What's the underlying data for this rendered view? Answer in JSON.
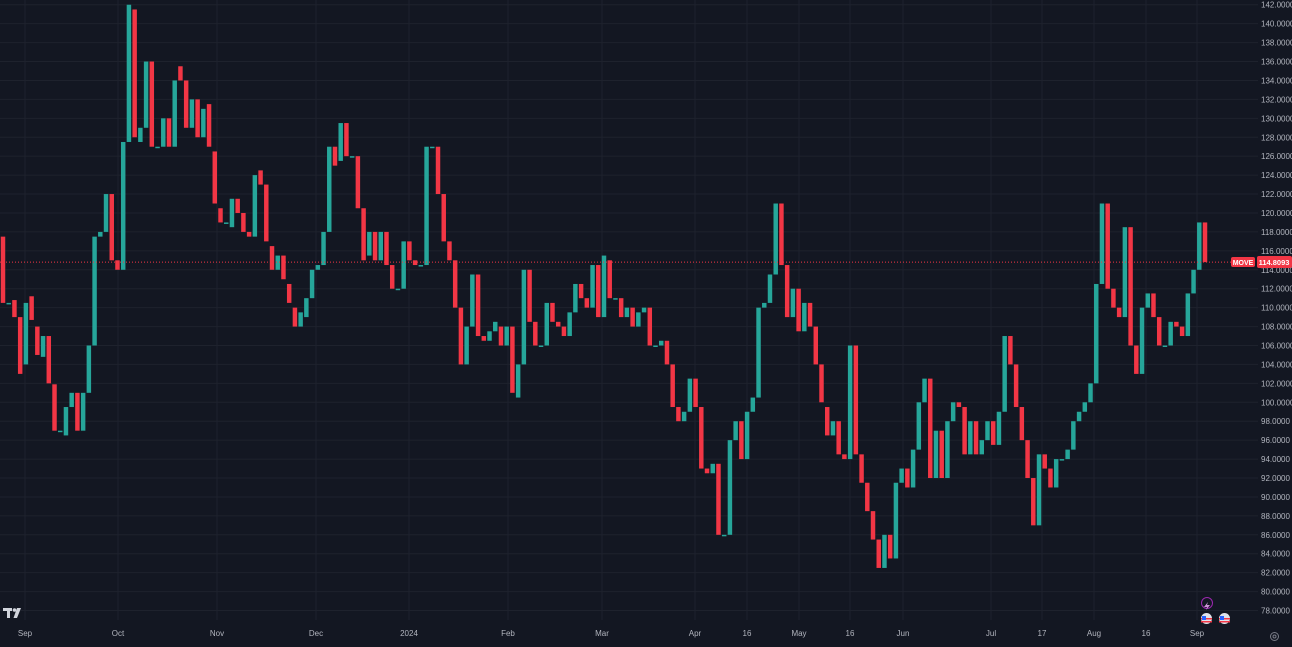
{
  "logo_text": "TV",
  "current_price_label": "114.8093",
  "symbol_tag": "MOVE",
  "colors": {
    "background": "#131722",
    "up": "#26a69a",
    "down": "#f23645",
    "grid": "#1e222d",
    "text": "#b2b5be",
    "price_line": "#f23645"
  },
  "icons": [
    "tradingview-logo-icon",
    "lightning-icon",
    "us-flag-event-icon",
    "settings-gear-icon"
  ],
  "chart_data": {
    "type": "candlestick",
    "ylim": [
      77,
      142.5
    ],
    "y_ticks": [
      "78.0000",
      "80.0000",
      "82.0000",
      "84.0000",
      "86.0000",
      "88.0000",
      "90.0000",
      "92.0000",
      "94.0000",
      "96.0000",
      "98.0000",
      "100.0000",
      "102.0000",
      "104.0000",
      "106.0000",
      "108.0000",
      "110.0000",
      "112.0000",
      "114.0000",
      "116.0000",
      "118.0000",
      "120.0000",
      "122.0000",
      "124.0000",
      "126.0000",
      "128.0000",
      "130.0000",
      "132.0000",
      "134.0000",
      "136.0000",
      "138.0000",
      "140.0000",
      "142.0000"
    ],
    "x_ticks": [
      "Sep",
      "Oct",
      "Nov",
      "Dec",
      "2024",
      "Feb",
      "Mar",
      "Apr",
      "16",
      "May",
      "16",
      "Jun",
      "Jul",
      "17",
      "Aug",
      "16",
      "Sep"
    ],
    "last_price": 114.8093,
    "candles": [
      [
        117.5,
        110.5
      ],
      [
        110.5,
        110.5
      ],
      [
        110.8,
        109.0
      ],
      [
        109.0,
        103.0
      ],
      [
        104.0,
        110.5
      ],
      [
        111.2,
        108.7
      ],
      [
        108.0,
        105.0
      ],
      [
        104.8,
        107.0
      ],
      [
        107.0,
        102.0
      ],
      [
        101.9,
        97.0
      ],
      [
        97.0,
        97.0
      ],
      [
        96.5,
        99.5
      ],
      [
        99.5,
        101.0
      ],
      [
        101.0,
        97.0
      ],
      [
        97.0,
        101.0
      ],
      [
        101.0,
        106.0
      ],
      [
        106.0,
        117.5
      ],
      [
        117.5,
        118.0
      ],
      [
        118.0,
        122.0
      ],
      [
        122.0,
        115.0
      ],
      [
        115.0,
        114.0
      ],
      [
        114.0,
        127.5
      ],
      [
        127.5,
        142.0
      ],
      [
        141.5,
        128.0
      ],
      [
        127.5,
        129.0
      ],
      [
        129.0,
        136.0
      ],
      [
        136.0,
        127.0
      ],
      [
        127.0,
        127.0
      ],
      [
        127.0,
        130.0
      ],
      [
        130.0,
        127.0
      ],
      [
        127.0,
        134.0
      ],
      [
        135.5,
        134.0
      ],
      [
        134.0,
        129.0
      ],
      [
        129.0,
        132.0
      ],
      [
        132.0,
        128.0
      ],
      [
        128.0,
        131.0
      ],
      [
        131.5,
        127.0
      ],
      [
        126.5,
        121.0
      ],
      [
        120.5,
        119.0
      ],
      [
        119.0,
        119.0
      ],
      [
        118.5,
        121.5
      ],
      [
        121.5,
        120.0
      ],
      [
        120.0,
        118.0
      ],
      [
        118.0,
        117.5
      ],
      [
        117.5,
        124.0
      ],
      [
        124.5,
        123.0
      ],
      [
        123.0,
        117.0
      ],
      [
        116.5,
        114.0
      ],
      [
        114.0,
        115.5
      ],
      [
        115.5,
        113.0
      ],
      [
        112.5,
        110.5
      ],
      [
        110.0,
        108.0
      ],
      [
        108.0,
        109.5
      ],
      [
        109.0,
        111.0
      ],
      [
        111.0,
        114.0
      ],
      [
        114.0,
        114.5
      ],
      [
        114.5,
        118.0
      ],
      [
        118.0,
        127.0
      ],
      [
        127.0,
        125.0
      ],
      [
        125.5,
        129.5
      ],
      [
        129.5,
        126.0
      ],
      [
        126.0,
        126.0
      ],
      [
        126.0,
        120.5
      ],
      [
        120.5,
        115.0
      ],
      [
        115.5,
        118.0
      ],
      [
        118.0,
        115.0
      ],
      [
        115.0,
        118.0
      ],
      [
        118.0,
        114.5
      ],
      [
        114.5,
        112.0
      ],
      [
        112.0,
        112.0
      ],
      [
        112.0,
        117.0
      ],
      [
        117.0,
        115.0
      ],
      [
        115.0,
        114.5
      ],
      [
        114.5,
        114.5
      ],
      [
        114.5,
        127.0
      ],
      [
        127.0,
        127.0
      ],
      [
        127.0,
        122.0
      ],
      [
        122.0,
        117.0
      ],
      [
        117.0,
        115.0
      ],
      [
        115.0,
        110.0
      ],
      [
        110.0,
        104.0
      ],
      [
        104.0,
        108.0
      ],
      [
        108.0,
        113.5
      ],
      [
        113.5,
        107.0
      ],
      [
        107.0,
        106.5
      ],
      [
        106.5,
        107.5
      ],
      [
        107.5,
        108.5
      ],
      [
        108.0,
        106.0
      ],
      [
        106.0,
        108.0
      ],
      [
        108.0,
        101.0
      ],
      [
        100.5,
        104.0
      ],
      [
        104.0,
        114.0
      ],
      [
        114.0,
        108.5
      ],
      [
        108.5,
        106.0
      ],
      [
        106.0,
        106.0
      ],
      [
        106.0,
        110.5
      ],
      [
        110.5,
        108.5
      ],
      [
        108.5,
        108.0
      ],
      [
        108.0,
        107.0
      ],
      [
        107.0,
        109.5
      ],
      [
        109.5,
        112.5
      ],
      [
        112.5,
        111.0
      ],
      [
        111.0,
        110.0
      ],
      [
        110.0,
        114.5
      ],
      [
        114.5,
        109.0
      ],
      [
        109.0,
        115.5
      ],
      [
        115.0,
        111.0
      ],
      [
        111.0,
        111.0
      ],
      [
        111.0,
        109.0
      ],
      [
        109.0,
        110.0
      ],
      [
        110.0,
        108.0
      ],
      [
        108.0,
        109.5
      ],
      [
        109.5,
        110.0
      ],
      [
        110.0,
        106.0
      ],
      [
        106.0,
        106.0
      ],
      [
        106.0,
        106.5
      ],
      [
        106.5,
        104.0
      ],
      [
        104.0,
        99.5
      ],
      [
        99.5,
        98.0
      ],
      [
        98.0,
        99.0
      ],
      [
        99.0,
        102.5
      ],
      [
        102.5,
        99.5
      ],
      [
        99.5,
        93.0
      ],
      [
        93.0,
        92.5
      ],
      [
        92.5,
        93.5
      ],
      [
        93.5,
        86.0
      ],
      [
        86.0,
        86.0
      ],
      [
        86.0,
        96.0
      ],
      [
        96.0,
        98.0
      ],
      [
        98.0,
        94.0
      ],
      [
        94.0,
        99.0
      ],
      [
        99.0,
        100.5
      ],
      [
        100.5,
        110.0
      ],
      [
        110.0,
        110.5
      ],
      [
        110.5,
        113.5
      ],
      [
        113.5,
        121.0
      ],
      [
        121.0,
        114.5
      ],
      [
        114.5,
        109.0
      ],
      [
        109.0,
        112.0
      ],
      [
        112.0,
        107.5
      ],
      [
        107.5,
        110.5
      ],
      [
        110.5,
        108.0
      ],
      [
        108.0,
        104.0
      ],
      [
        104.0,
        100.0
      ],
      [
        99.5,
        96.5
      ],
      [
        96.5,
        98.0
      ],
      [
        98.0,
        94.5
      ],
      [
        94.5,
        94.0
      ],
      [
        94.0,
        106.0
      ],
      [
        106.0,
        94.5
      ],
      [
        94.5,
        91.5
      ],
      [
        91.5,
        88.5
      ],
      [
        88.5,
        85.5
      ],
      [
        85.5,
        82.5
      ],
      [
        82.5,
        86.0
      ],
      [
        86.0,
        83.5
      ],
      [
        83.5,
        91.5
      ],
      [
        91.5,
        93.0
      ],
      [
        93.0,
        91.0
      ],
      [
        91.0,
        95.0
      ],
      [
        95.0,
        100.0
      ],
      [
        100.0,
        102.5
      ],
      [
        102.5,
        92.0
      ],
      [
        92.0,
        97.0
      ],
      [
        97.0,
        92.0
      ],
      [
        92.0,
        98.0
      ],
      [
        98.0,
        100.0
      ],
      [
        100.0,
        99.5
      ],
      [
        99.5,
        94.5
      ],
      [
        94.5,
        98.0
      ],
      [
        98.0,
        94.5
      ],
      [
        94.5,
        96.0
      ],
      [
        96.0,
        98.0
      ],
      [
        98.0,
        95.5
      ],
      [
        95.5,
        99.0
      ],
      [
        99.0,
        107.0
      ],
      [
        107.0,
        104.0
      ],
      [
        104.0,
        99.5
      ],
      [
        99.5,
        96.0
      ],
      [
        96.0,
        92.0
      ],
      [
        92.0,
        87.0
      ],
      [
        87.0,
        94.5
      ],
      [
        94.5,
        93.0
      ],
      [
        93.0,
        91.0
      ],
      [
        91.0,
        94.0
      ],
      [
        94.0,
        94.0
      ],
      [
        94.0,
        95.0
      ],
      [
        95.0,
        98.0
      ],
      [
        98.0,
        99.0
      ],
      [
        99.0,
        100.0
      ],
      [
        100.0,
        102.0
      ],
      [
        102.0,
        112.5
      ],
      [
        112.5,
        121.0
      ],
      [
        121.0,
        112.0
      ],
      [
        112.0,
        110.0
      ],
      [
        110.0,
        109.0
      ],
      [
        109.0,
        118.5
      ],
      [
        118.5,
        106.0
      ],
      [
        106.0,
        103.0
      ],
      [
        103.0,
        110.0
      ],
      [
        110.0,
        111.5
      ],
      [
        111.5,
        109.0
      ],
      [
        109.0,
        106.0
      ],
      [
        106.0,
        106.0
      ],
      [
        106.0,
        108.5
      ],
      [
        108.5,
        108.0
      ],
      [
        108.0,
        107.0
      ],
      [
        107.0,
        111.5
      ],
      [
        111.5,
        114.0
      ],
      [
        114.0,
        119.0
      ],
      [
        119.0,
        114.8093
      ]
    ]
  }
}
